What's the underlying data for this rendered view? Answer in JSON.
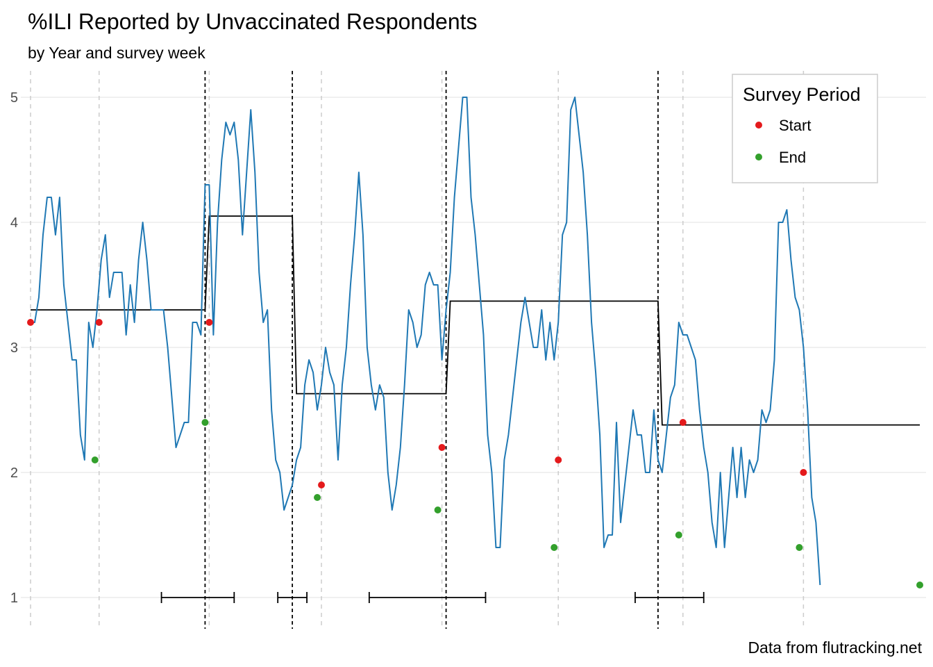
{
  "chart_data": {
    "type": "line",
    "title": "%ILI Reported by Unvaccinated Respondents",
    "subtitle": "by Year and survey week",
    "caption": "Data from flutracking.net",
    "xlabel": "",
    "ylabel": "",
    "ylim": [
      0.95,
      5.2
    ],
    "yticks": [
      1,
      2,
      3,
      4,
      5
    ],
    "grid": true,
    "legend": {
      "title": "Survey Period",
      "position": "top-right",
      "entries": [
        {
          "label": "Start",
          "color": "#e41a1c"
        },
        {
          "label": "End",
          "color": "#33a02c"
        }
      ]
    },
    "colors": {
      "series": "#1f78b4",
      "start": "#e41a1c",
      "end": "#33a02c",
      "level": "#000000",
      "grid": "#ebebeb",
      "guide": "#cccccc"
    },
    "x_range": [
      0,
      214
    ],
    "series": [
      {
        "values": [
          3.2,
          3.2,
          3.4,
          3.9,
          4.2,
          4.2,
          3.9,
          4.2,
          3.5,
          3.2,
          2.9,
          2.9,
          2.3,
          2.1,
          3.2,
          3.0,
          3.3,
          3.7,
          3.9,
          3.4,
          3.6,
          3.6,
          3.6,
          3.1,
          3.5,
          3.2,
          3.7,
          4.0,
          3.7,
          3.3,
          3.3,
          3.3,
          3.3,
          3.0,
          2.6,
          2.2,
          2.3,
          2.4,
          2.4,
          3.2,
          3.2,
          3.1,
          4.3,
          4.3,
          3.1,
          4.0,
          4.5,
          4.8,
          4.7,
          4.8,
          4.5,
          3.9,
          4.4,
          4.9,
          4.4,
          3.6,
          3.2,
          3.3,
          2.5,
          2.1,
          2.0,
          1.7,
          1.8,
          1.9,
          2.1,
          2.2,
          2.7,
          2.9,
          2.8,
          2.5,
          2.7,
          3.0,
          2.8,
          2.7,
          2.1,
          2.7,
          3.0,
          3.5,
          3.9,
          4.4,
          3.9,
          3.0,
          2.7,
          2.5,
          2.7,
          2.6,
          2.0,
          1.7,
          1.9,
          2.2,
          2.7,
          3.3,
          3.2,
          3.0,
          3.1,
          3.5,
          3.6,
          3.5,
          3.5,
          2.9,
          3.3,
          3.6,
          4.2,
          4.6,
          5.0,
          5.0,
          4.2,
          3.9,
          3.5,
          3.1,
          2.3,
          2.0,
          1.4,
          1.4,
          2.1,
          2.3,
          2.6,
          2.9,
          3.2,
          3.4,
          3.2,
          3.0,
          3.0,
          3.3,
          2.9,
          3.2,
          2.9,
          3.2,
          3.9,
          4.0,
          4.9,
          5.0,
          4.7,
          4.4,
          3.9,
          3.2,
          2.8,
          2.3,
          1.4,
          1.5,
          1.5,
          2.4,
          1.6,
          1.9,
          2.2,
          2.5,
          2.3,
          2.3,
          2.0,
          2.0,
          2.5,
          2.1,
          2.0,
          2.3,
          2.6,
          2.7,
          3.2,
          3.1,
          3.1,
          3.0,
          2.9,
          2.5,
          2.2,
          2.0,
          1.6,
          1.4,
          2.0,
          1.4,
          1.8,
          2.2,
          1.8,
          2.2,
          1.8,
          2.1,
          2.0,
          2.1,
          2.5,
          2.4,
          2.5,
          2.9,
          4.0,
          4.0,
          4.1,
          3.7,
          3.4,
          3.3,
          3.0,
          2.5,
          1.8,
          1.6,
          1.1
        ]
      }
    ],
    "period_means": [
      {
        "x0": 0,
        "x1": 42,
        "y": 3.3
      },
      {
        "x0": 43,
        "x1": 63,
        "y": 4.05
      },
      {
        "x0": 64,
        "x1": 100,
        "y": 2.63
      },
      {
        "x0": 101,
        "x1": 151,
        "y": 3.37
      },
      {
        "x0": 152,
        "x1": 214,
        "y": 2.38
      }
    ],
    "start_points": [
      {
        "x": 0,
        "y": 3.2
      },
      {
        "x": 16.5,
        "y": 3.2
      },
      {
        "x": 43,
        "y": 3.2
      },
      {
        "x": 70,
        "y": 1.9
      },
      {
        "x": 99,
        "y": 2.2
      },
      {
        "x": 127,
        "y": 2.1
      },
      {
        "x": 157,
        "y": 2.4
      },
      {
        "x": 186,
        "y": 2.0
      }
    ],
    "end_points": [
      {
        "x": 15.5,
        "y": 2.1
      },
      {
        "x": 42,
        "y": 2.4
      },
      {
        "x": 69,
        "y": 1.8
      },
      {
        "x": 98,
        "y": 1.7
      },
      {
        "x": 126,
        "y": 1.4
      },
      {
        "x": 156,
        "y": 1.5
      },
      {
        "x": 185,
        "y": 1.4
      },
      {
        "x": 214,
        "y": 1.1
      }
    ],
    "period_breaks": [
      42,
      63,
      100,
      151
    ],
    "guide_lines": [
      0,
      16.5,
      43,
      70,
      99,
      127,
      157,
      186
    ],
    "intervals": [
      {
        "x0": 31.5,
        "x1": 49
      },
      {
        "x0": 59.5,
        "x1": 66.5
      },
      {
        "x0": 81.5,
        "x1": 109.5
      },
      {
        "x0": 145.5,
        "x1": 162
      }
    ]
  }
}
